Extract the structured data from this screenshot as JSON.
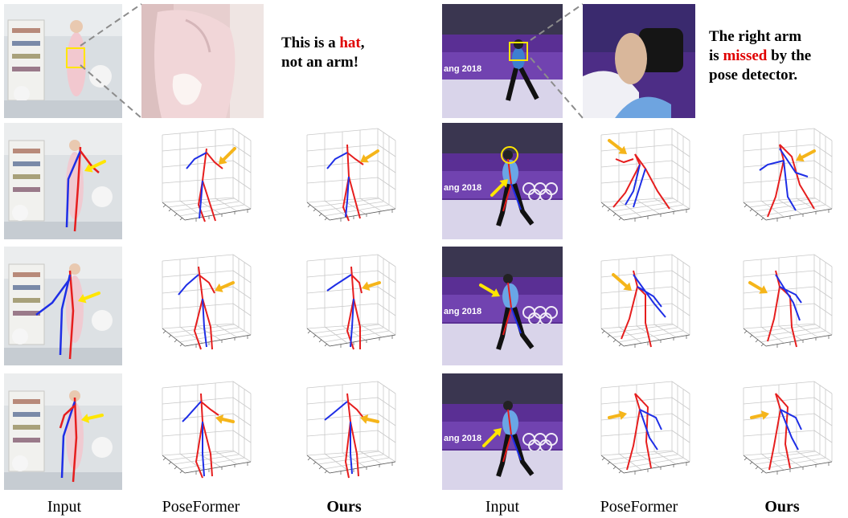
{
  "figure": {
    "left_note": {
      "before": "This is a ",
      "highlight": "hat",
      "after": ",",
      "line2": "not an arm!"
    },
    "right_note": {
      "line1": "The right arm",
      "line2_before": "is ",
      "highlight": "missed",
      "line2_after": " by the",
      "line3": "pose detector."
    },
    "banner_text": "ang 2018",
    "captions": [
      "Input",
      "PoseFormer",
      "Ours",
      "Input",
      "PoseFormer",
      "Ours"
    ],
    "colors": {
      "red": "#e61e1e",
      "blue": "#1e2ee6",
      "arrow_orange": "#f5b51a",
      "arrow_yellow": "#ffe600",
      "highlight_red": "#e00000"
    }
  }
}
